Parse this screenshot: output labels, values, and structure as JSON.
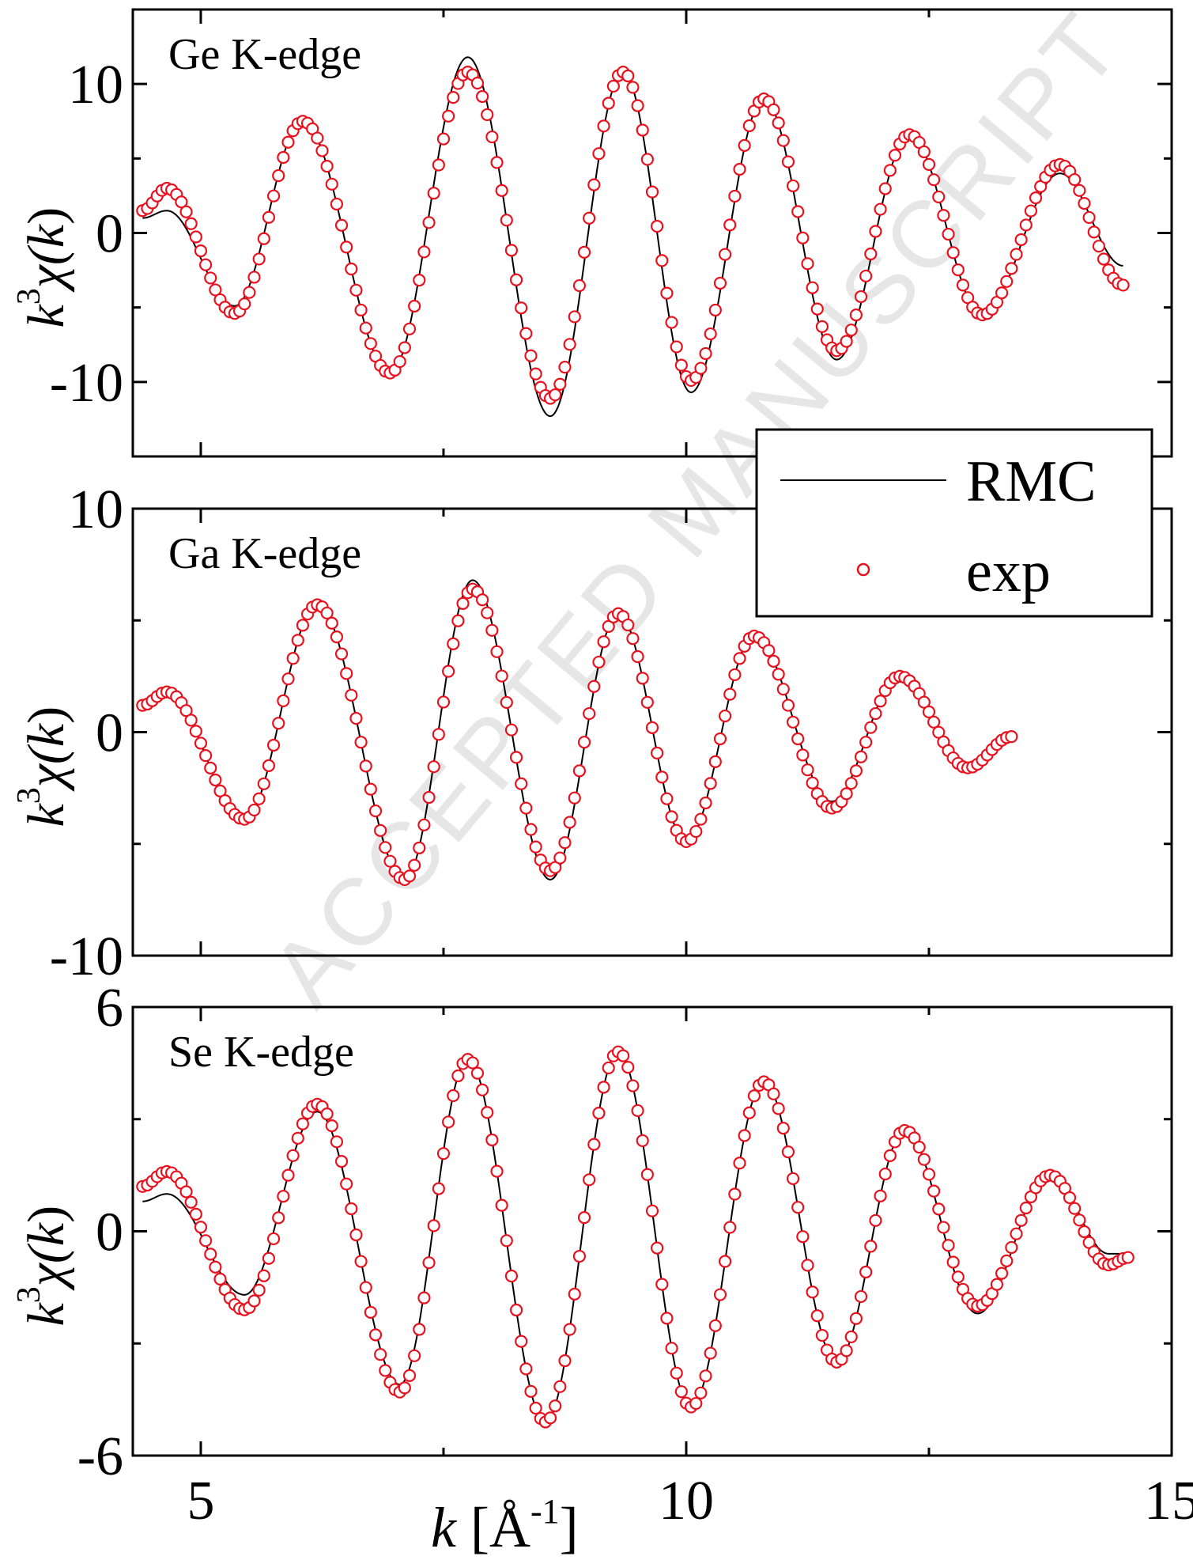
{
  "watermark": "ACCEPTED MANUSCRIPT",
  "colors": {
    "rmc_line": "#000000",
    "exp_marker": "#e8111e",
    "axis": "#000000"
  },
  "chart_data": [
    {
      "type": "line",
      "panel_label": "Ge K-edge",
      "xlabel": "",
      "ylabel": {
        "base": "k",
        "exp": "3",
        "rest": "χ(",
        "var": "k",
        "close": ")"
      },
      "xlim": [
        4.3,
        15
      ],
      "ylim": [
        -15,
        15
      ],
      "yticks": [
        -10,
        0,
        10
      ],
      "yticks_minor": [
        -5,
        5
      ],
      "xticks": [
        5,
        10,
        15
      ],
      "xticks_minor": [
        7.5,
        12.5
      ],
      "show_x_ticklabels": false,
      "grid": false,
      "envelope": {
        "x": [
          4.7,
          6.0,
          7.3,
          8.6,
          9.9,
          11.2,
          12.5,
          13.9,
          14.5
        ],
        "amp": [
          3.2,
          7.5,
          11.0,
          11.5,
          10.2,
          8.5,
          6.7,
          4.6,
          4.0
        ]
      },
      "extrema": [
        {
          "x": 4.65,
          "y": 3.0
        },
        {
          "x": 5.35,
          "y": -5.4
        },
        {
          "x": 6.05,
          "y": 7.5
        },
        {
          "x": 6.95,
          "y": -9.4
        },
        {
          "x": 7.75,
          "y": 10.8
        },
        {
          "x": 8.6,
          "y": -11.1
        },
        {
          "x": 9.35,
          "y": 10.8
        },
        {
          "x": 10.05,
          "y": -9.9
        },
        {
          "x": 10.8,
          "y": 9.0
        },
        {
          "x": 11.55,
          "y": -7.9
        },
        {
          "x": 12.3,
          "y": 6.6
        },
        {
          "x": 13.05,
          "y": -5.5
        },
        {
          "x": 13.85,
          "y": 4.6
        }
      ],
      "exp_points": {
        "x_start": 4.4,
        "x_end": 14.5,
        "y_start": 1.5,
        "y_end": -3.5
      },
      "rmc_line": {
        "x_start": 4.4,
        "x_end": 14.5,
        "y_start": 1.0,
        "y_end": -2.2,
        "deviations": [
          {
            "x": 4.65,
            "dy": -1.5
          },
          {
            "x": 5.35,
            "dy": 0.5
          },
          {
            "x": 7.75,
            "dy": 1.0
          },
          {
            "x": 8.6,
            "dy": -1.2
          },
          {
            "x": 10.05,
            "dy": -0.8
          },
          {
            "x": 11.55,
            "dy": -0.6
          },
          {
            "x": 13.85,
            "dy": -0.6
          }
        ]
      }
    },
    {
      "type": "line",
      "panel_label": "Ga K-edge",
      "xlabel": "",
      "ylabel": {
        "base": "k",
        "exp": "3",
        "rest": "χ(",
        "var": "k",
        "close": ")"
      },
      "xlim": [
        4.3,
        15
      ],
      "ylim": [
        -10,
        10
      ],
      "yticks": [
        -10,
        0,
        10
      ],
      "yticks_minor": [
        -5,
        5
      ],
      "xticks": [
        5,
        10,
        15
      ],
      "xticks_minor": [
        7.5,
        12.5
      ],
      "show_x_ticklabels": false,
      "grid": false,
      "extrema": [
        {
          "x": 4.65,
          "y": 1.8
        },
        {
          "x": 5.45,
          "y": -3.9
        },
        {
          "x": 6.2,
          "y": 5.7
        },
        {
          "x": 7.1,
          "y": -6.6
        },
        {
          "x": 7.8,
          "y": 6.4
        },
        {
          "x": 8.6,
          "y": -6.2
        },
        {
          "x": 9.3,
          "y": 5.3
        },
        {
          "x": 10.0,
          "y": -4.9
        },
        {
          "x": 10.7,
          "y": 4.3
        },
        {
          "x": 11.5,
          "y": -3.4
        },
        {
          "x": 12.2,
          "y": 2.5
        },
        {
          "x": 12.9,
          "y": -1.6
        }
      ],
      "exp_points": {
        "x_start": 4.4,
        "x_end": 13.35,
        "y_start": 1.2,
        "y_end": -0.2
      },
      "rmc_line": {
        "x_start": 4.4,
        "x_end": 13.35,
        "y_start": 1.2,
        "y_end": -0.2,
        "deviations": [
          {
            "x": 7.8,
            "dy": 0.4
          },
          {
            "x": 8.6,
            "dy": -0.4
          },
          {
            "x": 11.5,
            "dy": 0.3
          }
        ]
      }
    },
    {
      "type": "line",
      "panel_label": "Se K-edge",
      "xlabel": {
        "var": "k",
        "open": " [Å",
        "exp": "-1",
        "close": "]"
      },
      "ylabel": {
        "base": "k",
        "exp": "3",
        "rest": "χ(",
        "var": "k",
        "close": ")"
      },
      "xlim": [
        4.3,
        15
      ],
      "ylim": [
        -6,
        6
      ],
      "yticks": [
        -6,
        0,
        6
      ],
      "yticks_minor": [
        -3,
        3
      ],
      "xticks": [
        5,
        10,
        15
      ],
      "xticks_minor": [
        7.5,
        12.5
      ],
      "show_x_ticklabels": true,
      "grid": false,
      "extrema": [
        {
          "x": 4.65,
          "y": 1.6
        },
        {
          "x": 5.45,
          "y": -2.1
        },
        {
          "x": 6.2,
          "y": 3.4
        },
        {
          "x": 7.05,
          "y": -4.3
        },
        {
          "x": 7.75,
          "y": 4.6
        },
        {
          "x": 8.55,
          "y": -5.1
        },
        {
          "x": 9.3,
          "y": 4.8
        },
        {
          "x": 10.05,
          "y": -4.7
        },
        {
          "x": 10.8,
          "y": 4.0
        },
        {
          "x": 11.55,
          "y": -3.5
        },
        {
          "x": 12.25,
          "y": 2.7
        },
        {
          "x": 13.0,
          "y": -2.0
        },
        {
          "x": 13.75,
          "y": 1.5
        },
        {
          "x": 14.35,
          "y": -0.9
        }
      ],
      "exp_points": {
        "x_start": 4.4,
        "x_end": 14.55,
        "y_start": 1.2,
        "y_end": -0.7
      },
      "rmc_line": {
        "x_start": 4.4,
        "x_end": 14.55,
        "y_start": 0.8,
        "y_end": -0.6,
        "deviations": [
          {
            "x": 4.65,
            "dy": -0.6
          },
          {
            "x": 5.45,
            "dy": 0.4
          },
          {
            "x": 6.2,
            "dy": -0.2
          },
          {
            "x": 7.05,
            "dy": 0.2
          },
          {
            "x": 13.0,
            "dy": -0.2
          },
          {
            "x": 14.35,
            "dy": 0.3
          }
        ]
      }
    }
  ],
  "legend": {
    "placement": "right, between top and middle panels",
    "entries": [
      {
        "label": "RMC",
        "marker": "line"
      },
      {
        "label": "exp",
        "marker": "open-circle"
      }
    ]
  }
}
